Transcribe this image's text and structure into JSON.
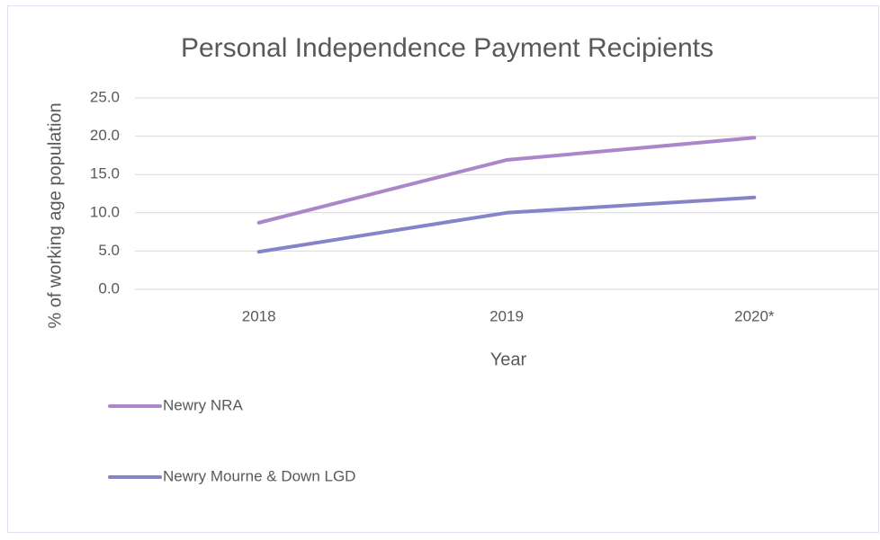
{
  "chart_data": {
    "type": "line",
    "title": "Personal Independence Payment Recipients",
    "x_label": "Year",
    "y_label": "% of working age population",
    "categories": [
      "2018",
      "2019",
      "2020*"
    ],
    "series": [
      {
        "name": "Newry NRA",
        "color": "#ab86ca",
        "values": [
          8.7,
          16.9,
          19.8
        ]
      },
      {
        "name": "Newry Mourne & Down LGD",
        "color": "#8684c9",
        "values": [
          4.9,
          10.0,
          12.0
        ]
      }
    ],
    "ylim": [
      0,
      25
    ],
    "yticks": [
      {
        "value": 0,
        "label": "0.0"
      },
      {
        "value": 5,
        "label": "5.0"
      },
      {
        "value": 10,
        "label": "10.0"
      },
      {
        "value": 15,
        "label": "15.0"
      },
      {
        "value": 20,
        "label": "20.0"
      },
      {
        "value": 25,
        "label": "25.0"
      }
    ],
    "grid": true
  }
}
